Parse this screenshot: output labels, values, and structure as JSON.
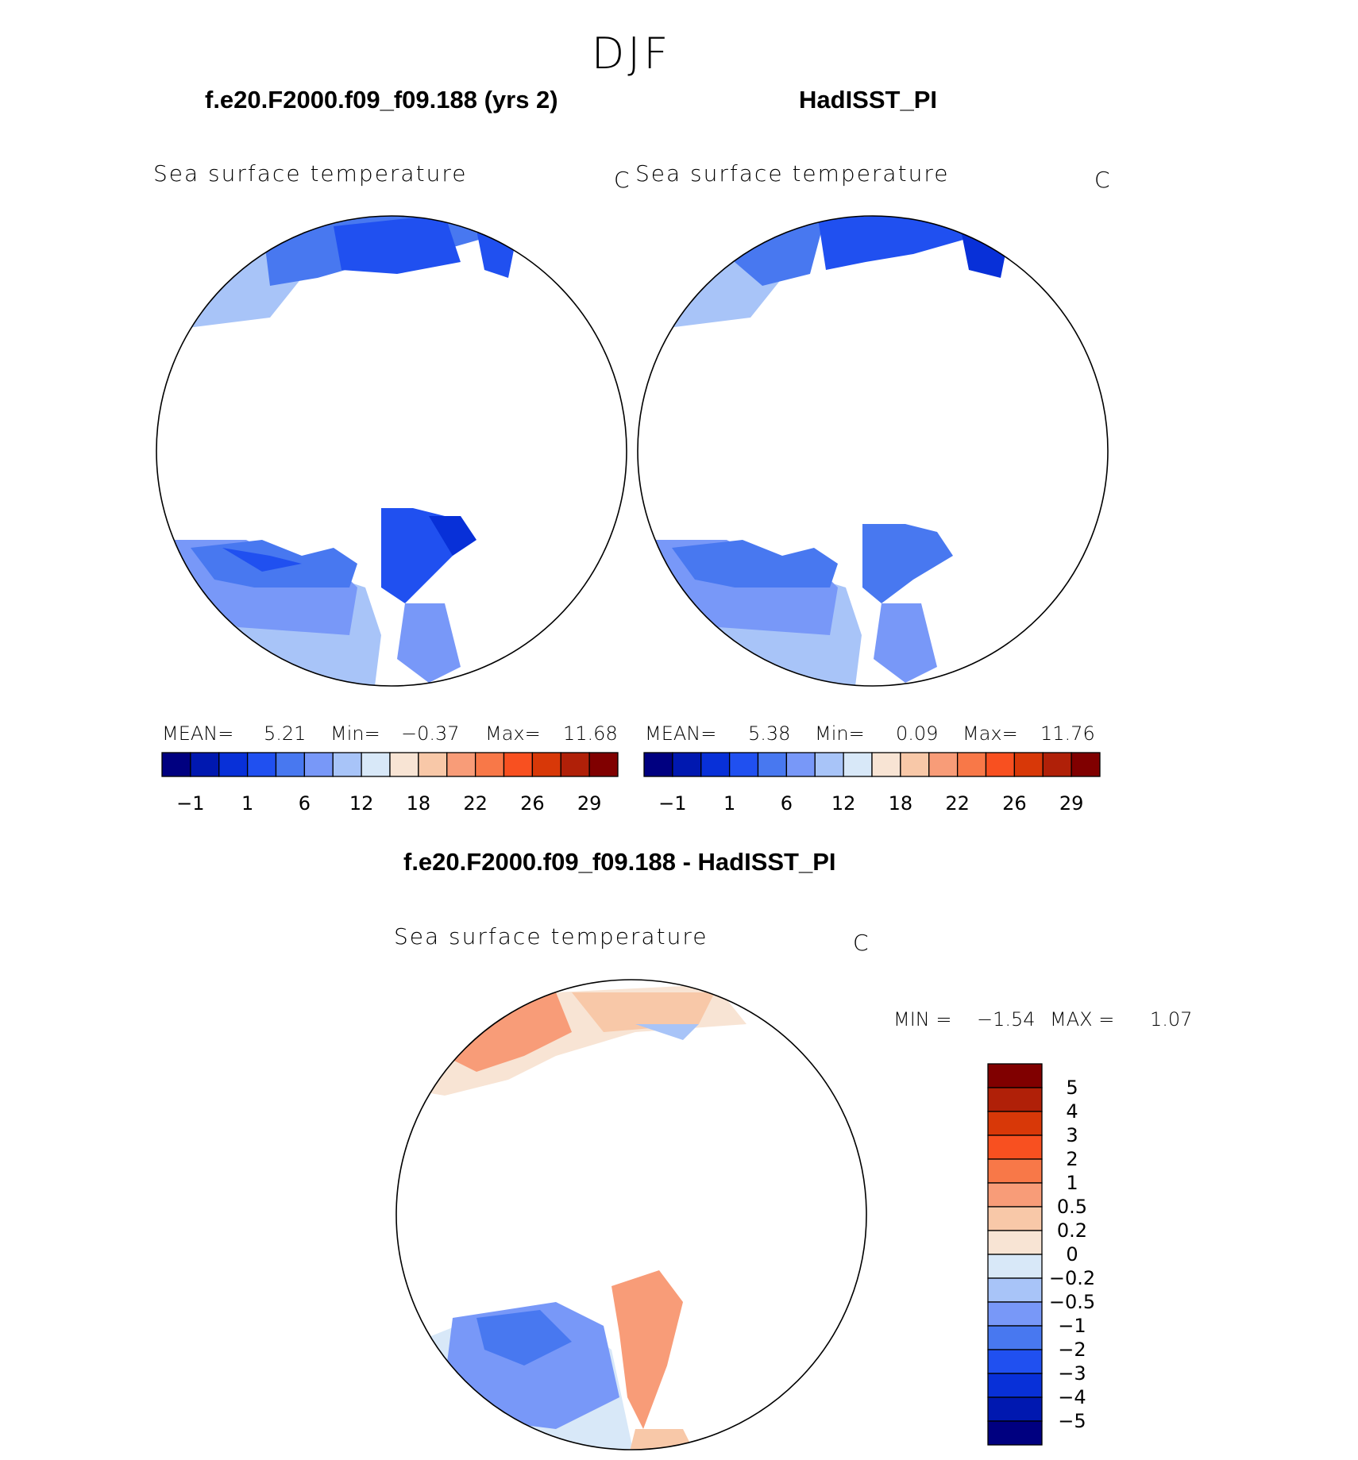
{
  "season": "DJF",
  "panels": [
    {
      "title": "f.e20.F2000.f09_f09.188 (yrs 2)",
      "variable": "Sea surface temperature",
      "units": "C",
      "stats": {
        "mean_label": "MEAN=",
        "mean": "5.21",
        "min_label": "Min=",
        "min": "−0.37",
        "max_label": "Max=",
        "max": "11.68"
      }
    },
    {
      "title": "HadISST_PI",
      "variable": "Sea surface temperature",
      "units": "C",
      "stats": {
        "mean_label": "MEAN=",
        "mean": "5.38",
        "min_label": "Min=",
        "min": "0.09",
        "max_label": "Max=",
        "max": "11.76"
      }
    },
    {
      "title": "f.e20.F2000.f09_f09.188 - HadISST_PI",
      "variable": "Sea surface temperature",
      "units": "C",
      "stats": {
        "min_label": "MIN =",
        "min": "−1.54",
        "max_label": "MAX =",
        "max": "1.07"
      }
    }
  ],
  "chart_data": [
    {
      "type": "heatmap",
      "projection": "north-polar-stereographic",
      "title": "f.e20.F2000.f09_f09.188 (yrs 2)",
      "field": "Sea surface temperature",
      "units": "C",
      "mean": 5.21,
      "min": -0.37,
      "max": 11.68,
      "colorbar": {
        "orientation": "horizontal",
        "levels": [
          "−1",
          "1",
          "6",
          "12",
          "18",
          "22",
          "26",
          "29"
        ],
        "colors": [
          "#000080",
          "#0018b0",
          "#0830d8",
          "#2050f0",
          "#4878f0",
          "#7898f8",
          "#a8c4f8",
          "#d8e8f8",
          "#f8e4d4",
          "#f8c8a8",
          "#f89c78",
          "#f87848",
          "#f85020",
          "#d83808",
          "#b02008",
          "#800000"
        ]
      }
    },
    {
      "type": "heatmap",
      "projection": "north-polar-stereographic",
      "title": "HadISST_PI",
      "field": "Sea surface temperature",
      "units": "C",
      "mean": 5.38,
      "min": 0.09,
      "max": 11.76,
      "colorbar": {
        "orientation": "horizontal",
        "levels": [
          "−1",
          "1",
          "6",
          "12",
          "18",
          "22",
          "26",
          "29"
        ],
        "colors": [
          "#000080",
          "#0018b0",
          "#0830d8",
          "#2050f0",
          "#4878f0",
          "#7898f8",
          "#a8c4f8",
          "#d8e8f8",
          "#f8e4d4",
          "#f8c8a8",
          "#f89c78",
          "#f87848",
          "#f85020",
          "#d83808",
          "#b02008",
          "#800000"
        ]
      }
    },
    {
      "type": "heatmap",
      "projection": "north-polar-stereographic",
      "title": "f.e20.F2000.f09_f09.188 - HadISST_PI",
      "field": "Sea surface temperature",
      "units": "C",
      "min": -1.54,
      "max": 1.07,
      "colorbar": {
        "orientation": "vertical",
        "levels": [
          "5",
          "4",
          "3",
          "2",
          "1",
          "0.5",
          "0.2",
          "0",
          "−0.2",
          "−0.5",
          "−1",
          "−2",
          "−3",
          "−4",
          "−5"
        ],
        "colors": [
          "#800000",
          "#b02008",
          "#d83808",
          "#f85020",
          "#f87848",
          "#f89c78",
          "#f8c8a8",
          "#f8e4d4",
          "#d8e8f8",
          "#a8c4f8",
          "#7898f8",
          "#4878f0",
          "#2050f0",
          "#0830d8",
          "#0018b0",
          "#000080"
        ]
      }
    }
  ]
}
